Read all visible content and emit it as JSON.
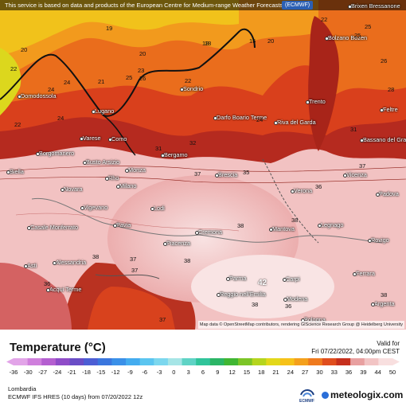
{
  "header": {
    "notice": "This service is based on data and products of the European Centre for Medium-range Weather Forecasts",
    "badge": "(ECMWF)"
  },
  "map": {
    "attribution": "Map data © OpenStreetMap contributors, rendering GIScience Research Group @ Heidelberg University",
    "cities": [
      {
        "name": "Brixen Bressanone"
      },
      {
        "name": "Bolzano Bozen"
      },
      {
        "name": "Domodossola"
      },
      {
        "name": "Sondrio"
      },
      {
        "name": "Lugano"
      },
      {
        "name": "Darfo Boario Terme"
      },
      {
        "name": "Trento"
      },
      {
        "name": "Feltre"
      },
      {
        "name": "Riva del Garda"
      },
      {
        "name": "Varese"
      },
      {
        "name": "Como"
      },
      {
        "name": "Bassano del Grappa"
      },
      {
        "name": "Borgomanero"
      },
      {
        "name": "Bergamo"
      },
      {
        "name": "Busto Arsizio"
      },
      {
        "name": "Monza"
      },
      {
        "name": "Biella"
      },
      {
        "name": "Brescia"
      },
      {
        "name": "Vicenza"
      },
      {
        "name": "Novara"
      },
      {
        "name": "Rho"
      },
      {
        "name": "Milano"
      },
      {
        "name": "Verona"
      },
      {
        "name": "Padova"
      },
      {
        "name": "Vigevano"
      },
      {
        "name": "Lodi"
      },
      {
        "name": "Casale Monferrato"
      },
      {
        "name": "Pavia"
      },
      {
        "name": "Mantova"
      },
      {
        "name": "Legnago"
      },
      {
        "name": "Cremona"
      },
      {
        "name": "Rovigo"
      },
      {
        "name": "Piacenza"
      },
      {
        "name": "Alessandria"
      },
      {
        "name": "Asti"
      },
      {
        "name": "Parma"
      },
      {
        "name": "Carpi"
      },
      {
        "name": "Ferrara"
      },
      {
        "name": "Acqui Terme"
      },
      {
        "name": "Reggio nell'Emilia"
      },
      {
        "name": "Modena"
      },
      {
        "name": "Argenta"
      },
      {
        "name": "Bologna"
      }
    ],
    "values": [
      {
        "text": "19"
      },
      {
        "text": "24"
      },
      {
        "text": "20"
      },
      {
        "text": "18"
      },
      {
        "text": "15"
      },
      {
        "text": "22"
      },
      {
        "text": "25"
      },
      {
        "text": "21"
      },
      {
        "text": "26"
      },
      {
        "text": "24"
      },
      {
        "text": "20"
      },
      {
        "text": "20"
      },
      {
        "text": "18"
      },
      {
        "text": "23"
      },
      {
        "text": "25"
      },
      {
        "text": "22"
      },
      {
        "text": "22"
      },
      {
        "text": "24"
      },
      {
        "text": "28"
      },
      {
        "text": "22"
      },
      {
        "text": "24"
      },
      {
        "text": "26"
      },
      {
        "text": "31"
      },
      {
        "text": "32"
      },
      {
        "text": "31"
      },
      {
        "text": "25"
      },
      {
        "text": "37"
      },
      {
        "text": "35"
      },
      {
        "text": "37"
      },
      {
        "text": "36"
      },
      {
        "text": "38"
      },
      {
        "text": "38"
      },
      {
        "text": "38"
      },
      {
        "text": "37"
      },
      {
        "text": "38"
      },
      {
        "text": "36"
      },
      {
        "text": "37"
      },
      {
        "text": "42"
      },
      {
        "text": "38"
      },
      {
        "text": "36"
      },
      {
        "text": "37"
      },
      {
        "text": "38"
      }
    ]
  },
  "legend": {
    "title": "Temperature (°C)",
    "valid_label": "Valid for",
    "valid_time": "Fri 07/22/2022, 04:00pm CEST",
    "ticks": [
      "-36",
      "-30",
      "-27",
      "-24",
      "-21",
      "-18",
      "-15",
      "-12",
      "-9",
      "-6",
      "-3",
      "0",
      "3",
      "6",
      "9",
      "12",
      "15",
      "18",
      "21",
      "24",
      "27",
      "30",
      "33",
      "36",
      "39",
      "44",
      "50"
    ],
    "colors": [
      "#e2a4e8",
      "#cf7fdc",
      "#b45fd0",
      "#8f4cc8",
      "#6a4dc6",
      "#4c5ed4",
      "#3a76de",
      "#3a90e8",
      "#44acef",
      "#5bc5f0",
      "#7cd7ee",
      "#a6e5e6",
      "#5fd3c5",
      "#30c49a",
      "#2bb566",
      "#40b633",
      "#7cc527",
      "#b5d51e",
      "#e3d81a",
      "#f6c219",
      "#f4a01c",
      "#ef7a1e",
      "#e04e1e",
      "#c6301d",
      "#e8a0a0",
      "#f2c4c4",
      "#f8dfdf"
    ]
  },
  "footer": {
    "region": "Lombardia",
    "model": "ECMWF IFS HRES (10 days) from 07/20/2022 12z",
    "ecmwf_logo_text": "ECMWF",
    "brand": "meteologix.com"
  }
}
